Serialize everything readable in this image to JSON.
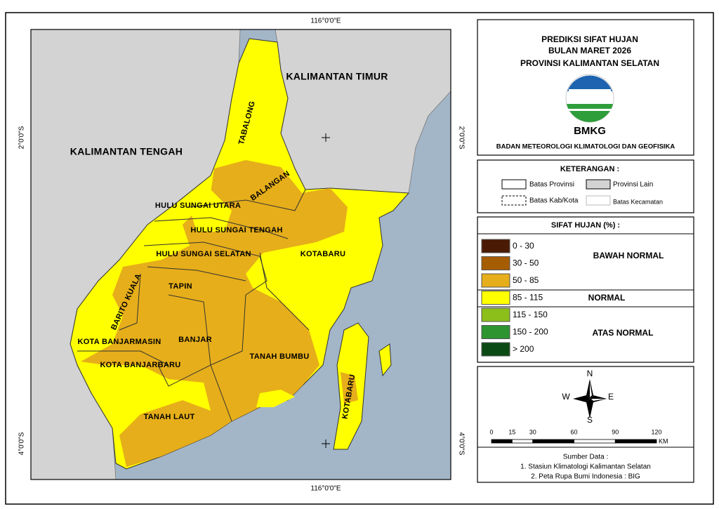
{
  "map": {
    "graticule": {
      "top": "116°0'0\"E",
      "bottom": "116°0'0\"E",
      "left": [
        "2°0'0\"S",
        "4°0'0\"S"
      ],
      "right": [
        "2°0'0\"S",
        "4°0'0\"S"
      ]
    },
    "regions": [
      "KALIMANTAN TIMUR",
      "KALIMANTAN TENGAH"
    ],
    "districts": [
      "TABALONG",
      "BALANGAN",
      "HULU SUNGAI UTARA",
      "HULU SUNGAI TENGAH",
      "HULU SUNGAI SELATAN",
      "KOTABARU",
      "BARITO KUALA",
      "TAPIN",
      "KOTA BANJARMASIN",
      "BANJAR",
      "KOTA BANJARBARU",
      "TANAH BUMBU",
      "TANAH LAUT",
      "KOTABARU"
    ]
  },
  "title": {
    "lines": [
      "PREDIKSI SIFAT HUJAN",
      "BULAN MARET 2026",
      "PROVINSI KALIMANTAN SELATAN"
    ],
    "logo": "BMKG",
    "agency": "BADAN METEOROLOGI KLIMATOLOGI DAN GEOFISIKA"
  },
  "keterangan": {
    "title": "KETERANGAN :",
    "items": [
      "Batas Provinsi",
      "Provinsi Lain",
      "Batas Kab/Kota",
      "Batas Kecamatan"
    ]
  },
  "sifat_hujan": {
    "title": "SIFAT HUJAN (%) :",
    "classes": [
      {
        "label": "0 - 30",
        "color": "#4a1a05"
      },
      {
        "label": "30 - 50",
        "color": "#a65c00"
      },
      {
        "label": "50 - 85",
        "color": "#e6ae1a"
      },
      {
        "label": "85 - 115",
        "color": "#ffff00"
      },
      {
        "label": "115 - 150",
        "color": "#8cbf1a"
      },
      {
        "label": "150 - 200",
        "color": "#2e9430"
      },
      {
        "label": "> 200",
        "color": "#0b4a14"
      }
    ],
    "groups": [
      "BAWAH NORMAL",
      "NORMAL",
      "ATAS NORMAL"
    ]
  },
  "compass": [
    "N",
    "E",
    "S",
    "W"
  ],
  "scale_bar": {
    "ticks": [
      0,
      15,
      30,
      60,
      90,
      120
    ],
    "unit": "KM"
  },
  "source": {
    "title": "Sumber Data :",
    "lines": [
      "1. Stasiun Klimatologi Kalimantan Selatan",
      "2. Peta Rupa Bumi Indonesia : BIG"
    ]
  }
}
